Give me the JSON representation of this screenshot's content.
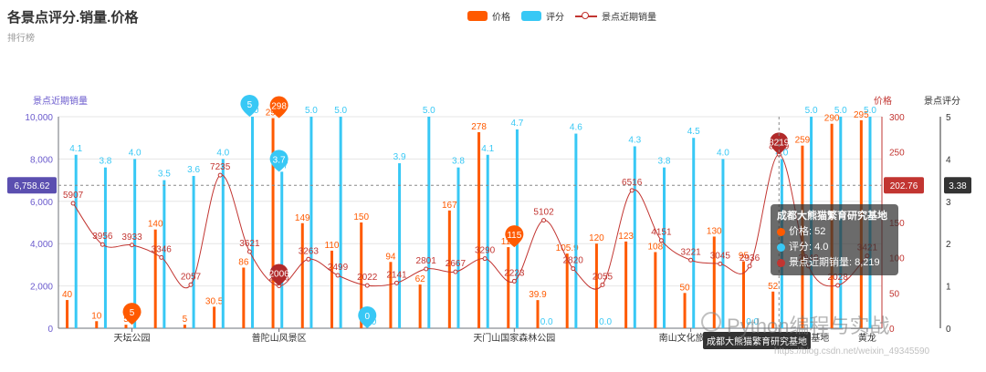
{
  "title": "各景点评分.销量.价格",
  "subtitle": "排行榜",
  "legend": [
    {
      "label": "价格",
      "color": "#ff5a00",
      "kind": "bar"
    },
    {
      "label": "评分",
      "color": "#38c8f5",
      "kind": "bar"
    },
    {
      "label": "景点近期销量",
      "color": "#c23531",
      "kind": "line"
    }
  ],
  "chart_data": {
    "type": "bar",
    "x_tick_labels": [
      "天坛公园",
      "普陀山风景区",
      "天门山国家森林公园",
      "南山文化旅游区",
      "成都大熊猫繁育研究基地",
      "黄龙"
    ],
    "x_categories_count": 28,
    "series": [
      {
        "name": "价格",
        "type": "bar",
        "color": "#ff5a00",
        "values": [
          40,
          10,
          5,
          140,
          5,
          30.5,
          86,
          298,
          149,
          110,
          150,
          94,
          62,
          167,
          278,
          115,
          39.9,
          105.9,
          120,
          123,
          108,
          50,
          130,
          95,
          52,
          259,
          290,
          295
        ]
      },
      {
        "name": "评分",
        "type": "bar",
        "color": "#38c8f5",
        "values": [
          4.1,
          3.8,
          4.0,
          3.5,
          3.6,
          4.0,
          5.0,
          3.7,
          5.0,
          5.0,
          0,
          3.9,
          5.0,
          3.8,
          4.1,
          4.7,
          0,
          4.6,
          0,
          4.3,
          3.8,
          4.5,
          4.0,
          0,
          4.0,
          5.0,
          5.0,
          5.0
        ]
      },
      {
        "name": "景点近期销量",
        "type": "line",
        "color": "#c23531",
        "values": [
          5907,
          3956,
          3933,
          3346,
          2057,
          7235,
          3621,
          2006,
          3263,
          2499,
          2022,
          2141,
          2801,
          2667,
          3290,
          2223,
          5102,
          2820,
          2055,
          6516,
          4151,
          3221,
          3045,
          2936,
          8219,
          2940,
          2028,
          3421
        ]
      }
    ],
    "axes": {
      "sales": {
        "label": "景点近期销量",
        "min": 0,
        "max": 10000,
        "ticks": [
          "0",
          "2,000",
          "4,000",
          "6,000",
          "8,000",
          "10,000"
        ]
      },
      "price": {
        "label": "价格",
        "min": 0,
        "max": 300,
        "ticks": [
          "0",
          "50",
          "100",
          "150",
          "200",
          "250",
          "300"
        ]
      },
      "rating": {
        "label": "景点评分",
        "min": 0,
        "max": 5,
        "ticks": [
          "0",
          "1",
          "2",
          "3",
          "4",
          "5"
        ]
      }
    },
    "markers": {
      "price_max": {
        "label": "298",
        "index": 7
      },
      "price_min": {
        "label": "5",
        "index": 2
      },
      "rating_max": {
        "label": "5",
        "index": 6
      },
      "rating_min": {
        "label": "0",
        "index": 10
      },
      "rating_point": {
        "label": "3.7",
        "index": 7
      },
      "sales_max": {
        "label": "8219",
        "index": 24
      },
      "sales_min": {
        "label": "2006",
        "index": 7
      },
      "price_point": {
        "label": "115",
        "index": 15
      }
    },
    "crosshair": {
      "sales": "6,758.62",
      "price": "202.76",
      "rating": "3.38"
    }
  },
  "tooltip": {
    "title": "成都大熊猫繁育研究基地",
    "rows": [
      {
        "label": "价格: 52",
        "color": "#ff5a00"
      },
      {
        "label": "评分: 4.0",
        "color": "#38c8f5"
      },
      {
        "label": "景点近期销量: 8,219",
        "color": "#c23531"
      }
    ]
  },
  "axis_pointer_label": "成都大熊猫繁育研究基地",
  "watermark": "Python编程与实战",
  "watermark_url": "https://blog.csdn.net/weixin_49345590"
}
